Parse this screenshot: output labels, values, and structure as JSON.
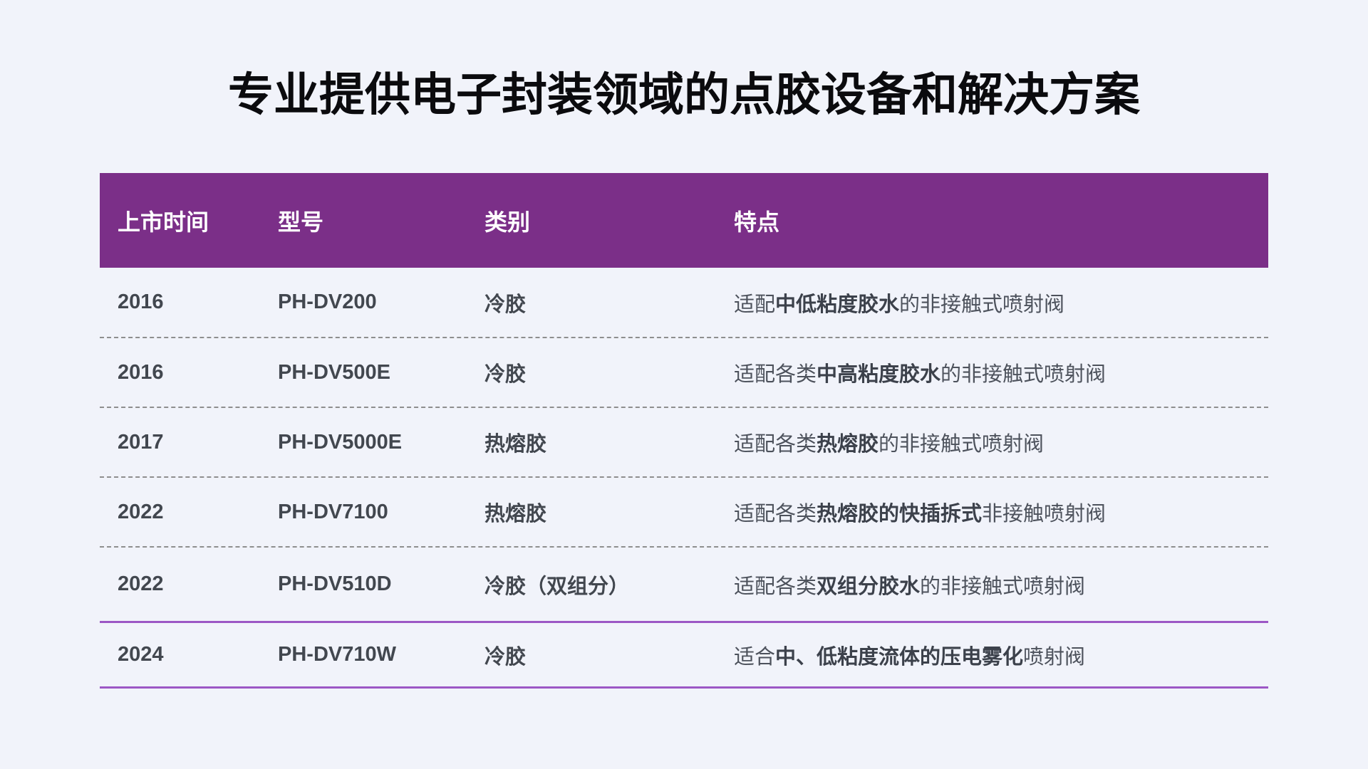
{
  "page": {
    "title": "专业提供电子封装领域的点胶设备和解决方案"
  },
  "colors": {
    "page_bg": "#f1f3fa",
    "header_bg": "#7b2f88",
    "accent_line": "#9c57c5",
    "dash_line": "#8e8e8e",
    "body_text": "#4d525c",
    "header_text": "#ffffff"
  },
  "table": {
    "columns": [
      {
        "label": "上市时间"
      },
      {
        "label": "型号"
      },
      {
        "label": "类别"
      },
      {
        "label": "特点"
      }
    ],
    "rows": [
      {
        "launch": "2016",
        "model": "PH-DV200",
        "category": "冷胶",
        "feature_pre": "适配",
        "feature_bold": "中低粘度胶水",
        "feature_post": "的非接触式喷射阀"
      },
      {
        "launch": "2016",
        "model": "PH-DV500E",
        "category": "冷胶",
        "feature_pre": "适配各类",
        "feature_bold": "中高粘度胶水",
        "feature_post": "的非接触式喷射阀"
      },
      {
        "launch": "2017",
        "model": "PH-DV5000E",
        "category": "热熔胶",
        "feature_pre": "适配各类",
        "feature_bold": "热熔胶",
        "feature_post": "的非接触式喷射阀"
      },
      {
        "launch": "2022",
        "model": "PH-DV7100",
        "category": "热熔胶",
        "feature_pre": "适配各类",
        "feature_bold": "热熔胶的快插拆式",
        "feature_post": "非接触喷射阀"
      },
      {
        "launch": "2022",
        "model": "PH-DV510D",
        "category": "冷胶（双组分）",
        "feature_pre": "适配各类",
        "feature_bold": "双组分胶水",
        "feature_post": "的非接触式喷射阀"
      },
      {
        "launch": "2024",
        "model": "PH-DV710W",
        "category": "冷胶",
        "feature_pre": "适合",
        "feature_bold": "中、低粘度流体的压电雾化",
        "feature_post": "喷射阀"
      }
    ]
  }
}
